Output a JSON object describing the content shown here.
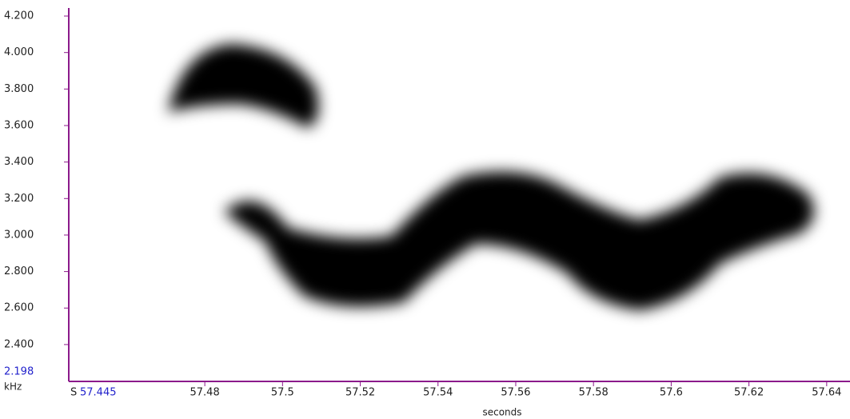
{
  "chart_data": {
    "type": "spectrogram",
    "xlabel": "seconds",
    "ylabel": "kHz",
    "x_prefix": "S",
    "axis_color": "#8b1a8b",
    "start_color": "#2222cc",
    "xlim": [
      57.445,
      57.646
    ],
    "xticks": [
      57.48,
      57.5,
      57.52,
      57.54,
      57.56,
      57.58,
      57.6,
      57.62,
      57.64
    ],
    "ylim": [
      2.198,
      4.244
    ],
    "yticks": [
      {
        "value": 2.4,
        "label": "2.400"
      },
      {
        "value": 2.6,
        "label": "2.600"
      },
      {
        "value": 2.8,
        "label": "2.800"
      },
      {
        "value": 3.0,
        "label": "3.000"
      },
      {
        "value": 3.2,
        "label": "3.200"
      },
      {
        "value": 3.4,
        "label": "3.400"
      },
      {
        "value": 3.6,
        "label": "3.600"
      },
      {
        "value": 3.8,
        "label": "3.800"
      },
      {
        "value": 4.0,
        "label": "4.000"
      },
      {
        "value": 4.2,
        "label": "4.200"
      }
    ]
  }
}
